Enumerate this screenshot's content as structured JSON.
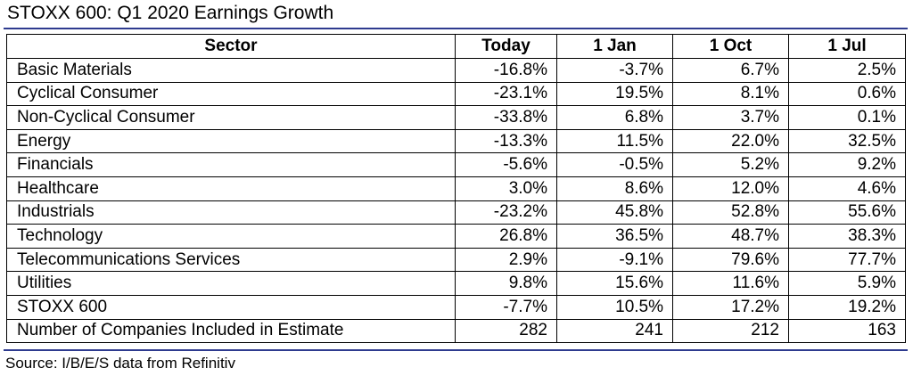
{
  "title": "STOXX 600: Q1 2020 Earnings Growth",
  "source": "Source: I/B/E/S data from Refinitiv",
  "colors": {
    "rule": "#2e3b8f"
  },
  "table": {
    "headers": [
      "Sector",
      "Today",
      "1 Jan",
      "1 Oct",
      "1 Jul"
    ],
    "rows": [
      [
        "Basic Materials",
        "-16.8%",
        "-3.7%",
        "6.7%",
        "2.5%"
      ],
      [
        "Cyclical Consumer",
        "-23.1%",
        "19.5%",
        "8.1%",
        "0.6%"
      ],
      [
        "Non-Cyclical Consumer",
        "-33.8%",
        "6.8%",
        "3.7%",
        "0.1%"
      ],
      [
        "Energy",
        "-13.3%",
        "11.5%",
        "22.0%",
        "32.5%"
      ],
      [
        "Financials",
        "-5.6%",
        "-0.5%",
        "5.2%",
        "9.2%"
      ],
      [
        "Healthcare",
        "3.0%",
        "8.6%",
        "12.0%",
        "4.6%"
      ],
      [
        "Industrials",
        "-23.2%",
        "45.8%",
        "52.8%",
        "55.6%"
      ],
      [
        "Technology",
        "26.8%",
        "36.5%",
        "48.7%",
        "38.3%"
      ],
      [
        "Telecommunications Services",
        "2.9%",
        "-9.1%",
        "79.6%",
        "77.7%"
      ],
      [
        "Utilities",
        "9.8%",
        "15.6%",
        "11.6%",
        "5.9%"
      ],
      [
        "STOXX 600",
        "-7.7%",
        "10.5%",
        "17.2%",
        "19.2%"
      ],
      [
        "Number of Companies Included in Estimate",
        "282",
        "241",
        "212",
        "163"
      ]
    ]
  }
}
